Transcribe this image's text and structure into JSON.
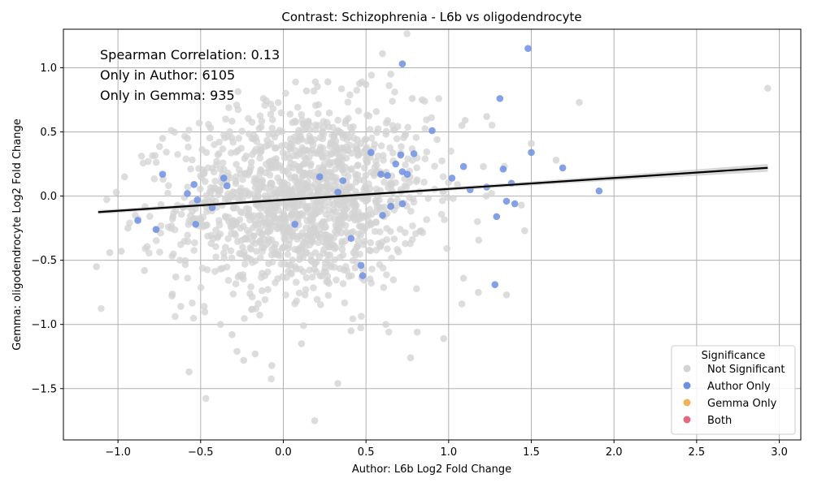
{
  "chart_data": {
    "type": "scatter",
    "title": "Contrast: Schizophrenia - L6b vs oligodendrocyte",
    "xlabel": "Author: L6b Log2 Fold Change",
    "ylabel": "Gemma: oligodendrocyte Log2 Fold Change",
    "xlim": [
      -1.33,
      3.13
    ],
    "ylim": [
      -1.9,
      1.3
    ],
    "xticks": [
      -1.0,
      -0.5,
      0.0,
      0.5,
      1.0,
      1.5,
      2.0,
      2.5,
      3.0
    ],
    "xtick_labels": [
      "−1.0",
      "−0.5",
      "0.0",
      "0.5",
      "1.0",
      "1.5",
      "2.0",
      "2.5",
      "3.0"
    ],
    "yticks": [
      -1.5,
      -1.0,
      -0.5,
      0.0,
      0.5,
      1.0
    ],
    "ytick_labels": [
      "−1.5",
      "−1.0",
      "−0.5",
      "0.0",
      "0.5",
      "1.0"
    ],
    "grid": true,
    "annotations": [
      "Spearman Correlation: 0.13",
      "Only in Author: 6105",
      "Only in Gemma: 935"
    ],
    "legend": {
      "title": "Significance",
      "placement": "lower-right",
      "entries": [
        {
          "label": "Not Significant",
          "color": "#d3d3d3"
        },
        {
          "label": "Author Only",
          "color": "#6f8fe3"
        },
        {
          "label": "Gemma Only",
          "color": "#f0b35a"
        },
        {
          "label": "Both",
          "color": "#e3697f"
        }
      ]
    },
    "regression_line": {
      "x": [
        -1.12,
        2.93
      ],
      "y": [
        -0.125,
        0.22
      ],
      "color": "#000000"
    },
    "series": [
      {
        "name": "Author Only",
        "color": "#6f8fe3",
        "points": [
          [
            1.48,
            1.15
          ],
          [
            0.72,
            1.03
          ],
          [
            1.31,
            0.76
          ],
          [
            0.9,
            0.51
          ],
          [
            1.5,
            0.34
          ],
          [
            0.53,
            0.34
          ],
          [
            0.71,
            0.32
          ],
          [
            0.79,
            0.33
          ],
          [
            1.69,
            0.22
          ],
          [
            1.09,
            0.23
          ],
          [
            1.33,
            0.21
          ],
          [
            0.68,
            0.25
          ],
          [
            0.72,
            0.19
          ],
          [
            0.75,
            0.17
          ],
          [
            0.59,
            0.17
          ],
          [
            0.63,
            0.16
          ],
          [
            1.02,
            0.14
          ],
          [
            1.38,
            0.1
          ],
          [
            1.23,
            0.07
          ],
          [
            1.13,
            0.05
          ],
          [
            1.91,
            0.04
          ],
          [
            1.35,
            -0.04
          ],
          [
            1.4,
            -0.06
          ],
          [
            0.72,
            -0.06
          ],
          [
            0.65,
            -0.08
          ],
          [
            1.29,
            -0.16
          ],
          [
            0.6,
            -0.15
          ],
          [
            0.41,
            -0.33
          ],
          [
            0.47,
            -0.54
          ],
          [
            0.48,
            -0.62
          ],
          [
            1.28,
            -0.69
          ],
          [
            -0.73,
            0.17
          ],
          [
            -0.54,
            0.09
          ],
          [
            -0.58,
            0.02
          ],
          [
            -0.88,
            -0.19
          ],
          [
            -0.77,
            -0.26
          ],
          [
            -0.36,
            0.14
          ],
          [
            -0.52,
            -0.03
          ],
          [
            -0.53,
            -0.22
          ],
          [
            -0.43,
            -0.09
          ],
          [
            -0.34,
            0.08
          ],
          [
            0.22,
            0.15
          ],
          [
            0.36,
            0.12
          ],
          [
            0.07,
            -0.22
          ],
          [
            0.33,
            0.03
          ]
        ]
      },
      {
        "name": "Not Significant",
        "color": "#d3d3d3",
        "points": [
          [
            2.93,
            0.84
          ],
          [
            1.79,
            0.73
          ],
          [
            1.65,
            0.28
          ],
          [
            1.5,
            0.41
          ],
          [
            1.23,
            0.62
          ],
          [
            1.1,
            0.59
          ],
          [
            1.08,
            0.55
          ],
          [
            1.21,
            0.23
          ],
          [
            1.44,
            -0.07
          ],
          [
            1.46,
            -0.27
          ],
          [
            1.35,
            -0.77
          ],
          [
            1.18,
            -0.75
          ],
          [
            1.08,
            -0.84
          ],
          [
            0.97,
            -1.11
          ],
          [
            0.77,
            -1.26
          ],
          [
            1.09,
            -0.64
          ],
          [
            0.81,
            -1.06
          ],
          [
            0.62,
            -1.0
          ],
          [
            0.33,
            -1.46
          ],
          [
            0.19,
            -1.75
          ],
          [
            -0.07,
            -1.32
          ],
          [
            -0.17,
            -1.23
          ],
          [
            -0.24,
            -1.28
          ],
          [
            -0.28,
            -1.21
          ],
          [
            -0.57,
            -1.37
          ],
          [
            -1.13,
            -0.55
          ],
          [
            -1.05,
            -0.44
          ],
          [
            -0.98,
            -0.43
          ],
          [
            -0.94,
            -0.25
          ],
          [
            -0.84,
            -0.58
          ],
          [
            -1.01,
            0.03
          ],
          [
            -0.96,
            0.15
          ],
          [
            -0.73,
            0.45
          ],
          [
            -0.58,
            0.45
          ],
          [
            -0.44,
            0.53
          ],
          [
            0.6,
            1.11
          ],
          [
            0.27,
            0.89
          ],
          [
            0.65,
            0.95
          ],
          [
            0.5,
            0.87
          ],
          [
            0.14,
            0.82
          ],
          [
            -0.12,
            0.76
          ],
          [
            0.93,
            0.44
          ],
          [
            0.84,
            0.75
          ],
          [
            0.78,
            0.76
          ],
          [
            -0.65,
            -0.63
          ],
          [
            -0.62,
            -0.86
          ],
          [
            -0.38,
            -1.0
          ],
          [
            -0.31,
            -1.08
          ],
          [
            0.11,
            -1.15
          ],
          [
            0.41,
            -1.05
          ]
        ],
        "cloud": {
          "center": [
            0.12,
            -0.02
          ],
          "spread": [
            0.38,
            0.36
          ],
          "count": 1400
        }
      }
    ]
  }
}
